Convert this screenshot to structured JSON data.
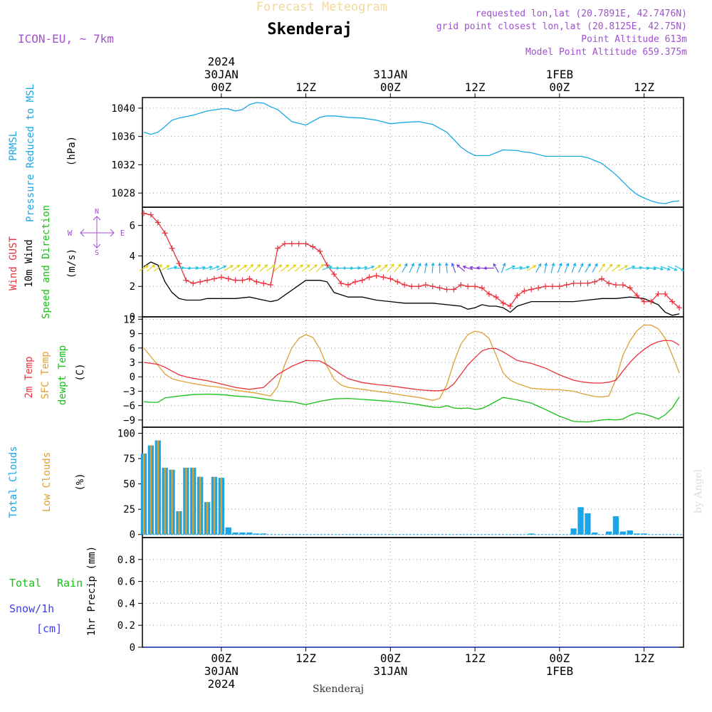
{
  "header": {
    "title_top": "Forecast Meteogram",
    "location": "Skenderaj",
    "model": "ICON-EU, ~ 7km",
    "requested": "requested lon,lat (20.7891E, 42.7476N)",
    "gridpoint": "grid point closest lon,lat (20.8125E, 42.75N)",
    "point_alt": "Point Altitude 613m",
    "model_alt": "Model Point Altitude 659.375m",
    "footer_location": "Skenderaj",
    "credit": "by Angel"
  },
  "colors": {
    "pressure": "#1aa6e6",
    "gust": "#e8323c",
    "wind": "#000000",
    "temp2m": "#e8323c",
    "sfc": "#dea033",
    "dewpt": "#18c018",
    "total_clouds": "#1aa6e6",
    "low_clouds": "#dea033",
    "rain": "#18c018",
    "snow": "#3c3cf0",
    "purple": "#a050d0",
    "grid": "#999999"
  },
  "time_axis": {
    "top_ticks": [
      {
        "t": 0,
        "label": "00Z",
        "date": "30JAN",
        "year": "2024"
      },
      {
        "t": 12,
        "label": "12Z"
      },
      {
        "t": 24,
        "label": "00Z",
        "date": "31JAN"
      },
      {
        "t": 36,
        "label": "12Z"
      },
      {
        "t": 48,
        "label": "00Z",
        "date": "1FEB"
      },
      {
        "t": 60,
        "label": "12Z"
      }
    ],
    "bottom_ticks": [
      {
        "t": 0,
        "label": "00Z",
        "date": "30JAN",
        "year": "2024"
      },
      {
        "t": 12,
        "label": "12Z"
      },
      {
        "t": 24,
        "label": "00Z",
        "date": "31JAN"
      },
      {
        "t": 36,
        "label": "12Z"
      },
      {
        "t": 48,
        "label": "00Z",
        "date": "1FEB"
      },
      {
        "t": 60,
        "label": "12Z"
      }
    ],
    "range": [
      -11.2,
      65.6
    ]
  },
  "panels": {
    "pressure": {
      "label1": "PRMSL",
      "label2": "Pressure Reduced to MSL",
      "unit": "(hPa)",
      "ylim": [
        1026,
        1041.5
      ],
      "ticks": [
        1028,
        1032,
        1036,
        1040
      ]
    },
    "wind": {
      "label_gust": "Wind GUST",
      "label_wind": "10m Wind",
      "label_dir": "Speed and Direction",
      "unit": "(m/s)",
      "ylim": [
        0,
        7.2
      ],
      "ticks": [
        0,
        2,
        4,
        6
      ],
      "compass": {
        "n": "N",
        "s": "S",
        "w": "W",
        "e": "E"
      }
    },
    "temp": {
      "label_2m": "2m Temp",
      "label_sfc": "SFC Temp",
      "label_dew": "dewpt Temp",
      "unit": "(C)",
      "ylim": [
        -10.5,
        12.5
      ],
      "ticks": [
        -9,
        -6,
        -3,
        0,
        3,
        6,
        9,
        12
      ]
    },
    "clouds": {
      "label_total": "Total Clouds",
      "label_low": "Low Clouds",
      "unit": "(%)",
      "ylim": [
        -3,
        106
      ],
      "ticks": [
        0,
        25,
        50,
        75,
        100
      ]
    },
    "precip": {
      "label_total": "Total",
      "label_rain": "Rain",
      "label_snow": "Snow/1h",
      "label_snow_unit": "[cm]",
      "unit": "1hr Precip (mm)",
      "ylim": [
        0,
        1.0
      ],
      "ticks": [
        0,
        0.2,
        0.4,
        0.6,
        0.8
      ]
    }
  },
  "chart_data": {
    "type": "line",
    "pressure": {
      "t": [
        -11,
        -10,
        -9,
        -8,
        -7,
        -6,
        -4,
        -2,
        0,
        1,
        2,
        3,
        4,
        5,
        6,
        7,
        8,
        10,
        12,
        14,
        15,
        16,
        18,
        20,
        22,
        24,
        26,
        28,
        30,
        32,
        34,
        35,
        36,
        37,
        38,
        39,
        40,
        42,
        43,
        44,
        46,
        48,
        50,
        51,
        52,
        54,
        55,
        56,
        57,
        58,
        59,
        60,
        61,
        62,
        63,
        64,
        65
      ],
      "values": [
        1036.6,
        1036.3,
        1036.6,
        1037.4,
        1038.3,
        1038.6,
        1039.0,
        1039.6,
        1039.9,
        1039.9,
        1039.6,
        1039.8,
        1040.5,
        1040.8,
        1040.7,
        1040.2,
        1039.8,
        1038.1,
        1037.6,
        1038.7,
        1038.9,
        1038.9,
        1038.7,
        1038.6,
        1038.3,
        1037.8,
        1038.0,
        1038.1,
        1037.7,
        1036.6,
        1034.5,
        1033.8,
        1033.3,
        1033.3,
        1033.3,
        1033.7,
        1034.1,
        1034.0,
        1033.8,
        1033.7,
        1033.2,
        1033.2,
        1033.2,
        1033.2,
        1033.0,
        1032.2,
        1031.4,
        1030.6,
        1029.6,
        1028.6,
        1027.8,
        1027.3,
        1026.9,
        1026.6,
        1026.5,
        1026.8,
        1026.9
      ]
    },
    "wind_gust": {
      "t": [
        -11,
        -10,
        -9,
        -8,
        -7,
        -6,
        -5,
        -4,
        -3,
        -2,
        -1,
        0,
        1,
        2,
        3,
        4,
        5,
        6,
        7,
        8,
        9,
        10,
        11,
        12,
        13,
        14,
        15,
        16,
        17,
        18,
        19,
        20,
        21,
        22,
        23,
        24,
        25,
        26,
        27,
        28,
        29,
        30,
        31,
        32,
        33,
        34,
        35,
        36,
        37,
        38,
        39,
        40,
        41,
        42,
        43,
        44,
        45,
        46,
        47,
        48,
        49,
        50,
        51,
        52,
        53,
        54,
        55,
        56,
        57,
        58,
        59,
        60,
        61,
        62,
        63,
        64,
        65
      ],
      "values": [
        6.8,
        6.7,
        6.2,
        5.5,
        4.5,
        3.5,
        2.4,
        2.2,
        2.3,
        2.4,
        2.5,
        2.6,
        2.5,
        2.4,
        2.4,
        2.5,
        2.3,
        2.2,
        2.1,
        4.5,
        4.8,
        4.8,
        4.8,
        4.8,
        4.6,
        4.3,
        3.4,
        2.8,
        2.2,
        2.1,
        2.3,
        2.4,
        2.6,
        2.7,
        2.6,
        2.5,
        2.3,
        2.1,
        2.0,
        2.0,
        2.1,
        2.0,
        1.9,
        1.8,
        1.8,
        2.1,
        2.0,
        2.0,
        1.9,
        1.5,
        1.3,
        0.9,
        0.7,
        1.4,
        1.7,
        1.8,
        1.9,
        2.0,
        2.0,
        2.0,
        2.1,
        2.2,
        2.2,
        2.2,
        2.3,
        2.5,
        2.2,
        2.1,
        2.1,
        1.9,
        1.4,
        1.0,
        1.0,
        1.5,
        1.5,
        1.0,
        0.6
      ]
    },
    "wind_speed": {
      "t": [
        -11,
        -10,
        -9,
        -8,
        -7,
        -6,
        -5,
        -4,
        -3,
        -2,
        0,
        2,
        4,
        6,
        7,
        8,
        12,
        14,
        15,
        16,
        18,
        20,
        22,
        24,
        26,
        28,
        30,
        32,
        34,
        35,
        36,
        37,
        38,
        39,
        40,
        41,
        42,
        44,
        46,
        48,
        50,
        52,
        54,
        56,
        58,
        60,
        61,
        62,
        63,
        64,
        65
      ],
      "values": [
        3.3,
        3.6,
        3.4,
        2.3,
        1.6,
        1.2,
        1.1,
        1.1,
        1.1,
        1.2,
        1.2,
        1.2,
        1.3,
        1.1,
        1.0,
        1.1,
        2.4,
        2.4,
        2.3,
        1.6,
        1.3,
        1.3,
        1.1,
        1.0,
        0.9,
        0.9,
        0.9,
        0.8,
        0.7,
        0.5,
        0.6,
        0.8,
        0.7,
        0.7,
        0.6,
        0.3,
        0.7,
        1.0,
        1.0,
        1.0,
        1.0,
        1.1,
        1.2,
        1.2,
        1.3,
        1.2,
        1.0,
        0.8,
        0.3,
        0.1,
        0.2
      ]
    },
    "wind_arrows": {
      "t": [
        -11,
        -10,
        -9,
        -8,
        -7,
        -6,
        -5,
        -4,
        -3,
        -2,
        -1,
        0,
        1,
        2,
        3,
        4,
        5,
        6,
        7,
        8,
        9,
        10,
        11,
        12,
        13,
        14,
        15,
        16,
        17,
        18,
        19,
        20,
        21,
        22,
        23,
        24,
        25,
        26,
        27,
        28,
        29,
        30,
        31,
        32,
        33,
        34,
        35,
        36,
        37,
        38,
        39,
        40,
        41,
        42,
        43,
        44,
        45,
        46,
        47,
        48,
        49,
        50,
        51,
        52,
        53,
        54,
        55,
        56,
        57,
        58,
        59,
        60,
        61,
        62,
        63,
        64,
        65
      ],
      "dir": [
        240,
        230,
        230,
        240,
        255,
        265,
        270,
        265,
        260,
        255,
        250,
        245,
        240,
        235,
        235,
        225,
        225,
        230,
        235,
        230,
        230,
        230,
        230,
        230,
        230,
        225,
        250,
        270,
        270,
        270,
        265,
        260,
        250,
        240,
        230,
        220,
        220,
        210,
        205,
        200,
        190,
        185,
        180,
        175,
        160,
        130,
        110,
        100,
        95,
        90,
        150,
        200,
        245,
        260,
        255,
        240,
        210,
        190,
        195,
        200,
        200,
        200,
        205,
        210,
        210,
        215,
        220,
        230,
        240,
        250,
        265,
        275,
        280,
        285,
        290,
        295,
        300
      ],
      "speed": [
        3.3,
        3.6,
        3.4,
        2.3,
        1.6,
        1.2,
        1.1,
        1.1,
        1.1,
        1.2,
        1.2,
        1.2,
        1.2,
        1.2,
        1.3,
        1.3,
        1.2,
        1.1,
        1.0,
        1.1,
        1.4,
        1.8,
        2.1,
        2.4,
        2.4,
        2.4,
        2.3,
        1.6,
        1.4,
        1.3,
        1.3,
        1.3,
        1.2,
        1.1,
        1.0,
        1.0,
        0.9,
        0.9,
        0.9,
        0.9,
        0.9,
        0.9,
        0.85,
        0.8,
        0.75,
        0.7,
        0.5,
        0.6,
        0.8,
        0.7,
        0.7,
        0.6,
        0.3,
        0.7,
        0.8,
        1.0,
        1.0,
        1.0,
        1.0,
        1.0,
        1.0,
        1.0,
        1.1,
        1.1,
        1.2,
        1.2,
        1.2,
        1.2,
        1.3,
        1.3,
        1.2,
        1.2,
        1.0,
        0.8,
        0.3,
        0.1,
        0.2
      ]
    },
    "temp_2m": {
      "t": [
        -11,
        -9,
        -8,
        -7,
        -6,
        -5,
        -4,
        -2,
        0,
        2,
        4,
        6,
        8,
        10,
        12,
        14,
        15,
        16,
        17,
        18,
        20,
        22,
        24,
        26,
        28,
        30,
        31,
        32,
        33,
        34,
        35,
        36,
        37,
        38,
        39,
        40,
        42,
        44,
        46,
        48,
        50,
        51,
        52,
        53,
        54,
        55,
        56,
        57,
        58,
        59,
        60,
        61,
        62,
        63,
        64,
        65
      ],
      "values": [
        3.0,
        2.6,
        2.0,
        1.2,
        0.4,
        0.0,
        -0.3,
        -0.8,
        -1.5,
        -2.2,
        -2.6,
        -2.2,
        0.5,
        2.2,
        3.4,
        3.3,
        2.5,
        1.5,
        0.5,
        -0.4,
        -1.2,
        -1.6,
        -1.9,
        -2.3,
        -2.7,
        -2.9,
        -2.9,
        -2.6,
        -1.5,
        0.5,
        2.5,
        4.0,
        5.4,
        5.9,
        5.9,
        5.2,
        3.4,
        2.8,
        1.8,
        0.4,
        -0.7,
        -1.0,
        -1.2,
        -1.3,
        -1.3,
        -1.1,
        -0.7,
        1.2,
        3.0,
        4.5,
        5.7,
        6.7,
        7.3,
        7.6,
        7.5,
        6.6
      ]
    },
    "temp_sfc": {
      "t": [
        -11,
        -10,
        -9,
        -8,
        -7,
        -6,
        -4,
        -2,
        0,
        2,
        4,
        5,
        6,
        7,
        8,
        9,
        10,
        11,
        12,
        13,
        14,
        15,
        16,
        17,
        18,
        20,
        22,
        24,
        26,
        28,
        30,
        31,
        32,
        33,
        34,
        35,
        36,
        37,
        38,
        39,
        40,
        41,
        42,
        44,
        46,
        48,
        50,
        51,
        52,
        53,
        54,
        55,
        56,
        57,
        58,
        59,
        60,
        61,
        62,
        63,
        64,
        65
      ],
      "values": [
        6.0,
        4.2,
        2.4,
        0.6,
        -0.4,
        -0.8,
        -1.4,
        -1.9,
        -2.2,
        -2.8,
        -3.2,
        -3.4,
        -3.7,
        -4.0,
        -2.0,
        2.5,
        6.0,
        8.0,
        8.8,
        8.2,
        5.8,
        2.2,
        -0.5,
        -1.7,
        -2.2,
        -2.6,
        -3.0,
        -3.4,
        -3.9,
        -4.3,
        -4.9,
        -4.5,
        -1.7,
        3.0,
        6.8,
        8.8,
        9.5,
        9.2,
        8.0,
        4.5,
        0.8,
        -0.7,
        -1.4,
        -2.4,
        -2.6,
        -2.7,
        -3.0,
        -3.4,
        -3.8,
        -4.1,
        -4.2,
        -4.0,
        -0.5,
        4.5,
        7.5,
        9.6,
        10.8,
        10.8,
        10.0,
        8.0,
        4.5,
        0.8
      ]
    },
    "temp_dew": {
      "t": [
        -11,
        -10,
        -9,
        -8,
        -7,
        -6,
        -4,
        -2,
        0,
        2,
        4,
        6,
        8,
        10,
        12,
        14,
        16,
        18,
        20,
        22,
        24,
        26,
        28,
        30,
        31,
        32,
        33,
        34,
        35,
        36,
        37,
        38,
        40,
        42,
        44,
        46,
        48,
        50,
        52,
        54,
        55,
        56,
        57,
        58,
        59,
        60,
        61,
        62,
        63,
        64,
        65
      ],
      "values": [
        -5.2,
        -5.3,
        -5.3,
        -4.4,
        -4.2,
        -4.0,
        -3.7,
        -3.6,
        -3.7,
        -4.0,
        -4.2,
        -4.6,
        -5.0,
        -5.2,
        -5.8,
        -5.1,
        -4.6,
        -4.5,
        -4.7,
        -4.9,
        -5.1,
        -5.4,
        -5.8,
        -6.3,
        -6.4,
        -6.0,
        -6.5,
        -6.6,
        -6.5,
        -6.8,
        -6.6,
        -5.9,
        -4.3,
        -4.8,
        -5.5,
        -6.8,
        -8.2,
        -9.3,
        -9.4,
        -9.0,
        -8.9,
        -9.0,
        -8.8,
        -8.0,
        -7.5,
        -7.8,
        -8.2,
        -8.8,
        -7.9,
        -6.5,
        -4.2
      ]
    },
    "clouds_total": {
      "t": [
        -11,
        -10,
        -9,
        -8,
        -7,
        -6,
        -5,
        -4,
        -3,
        -2,
        -1,
        0,
        1,
        2,
        3,
        4,
        5,
        6,
        7,
        8,
        9,
        10,
        11,
        12,
        13,
        14,
        15,
        16,
        17,
        18,
        19,
        20,
        21,
        22,
        23,
        24,
        25,
        26,
        27,
        28,
        29,
        30,
        31,
        32,
        33,
        34,
        35,
        36,
        37,
        38,
        39,
        40,
        41,
        42,
        43,
        44,
        45,
        46,
        47,
        48,
        49,
        50,
        51,
        52,
        53,
        54,
        55,
        56,
        57,
        58,
        59,
        60,
        61,
        62,
        63,
        64,
        65
      ],
      "values": [
        80,
        88,
        93,
        66,
        64,
        23,
        66,
        66,
        57,
        32,
        57,
        56,
        7,
        2,
        2,
        2,
        1,
        1,
        0,
        0,
        0,
        0,
        0,
        0,
        0,
        0,
        0,
        0,
        0,
        0,
        0,
        0,
        0,
        0,
        0,
        0,
        0,
        0,
        0,
        0,
        0,
        0,
        0,
        0,
        0,
        0,
        0,
        0,
        0,
        0,
        0,
        0,
        0,
        0,
        0,
        1,
        0,
        0,
        0,
        0,
        0,
        6,
        27,
        21,
        2,
        0,
        3,
        18,
        3,
        4,
        1,
        1,
        0,
        0,
        0,
        0,
        0
      ]
    },
    "clouds_low": {
      "t": [
        -11,
        -10,
        -9,
        -8,
        -7,
        -6,
        -5,
        -4,
        -3,
        -2,
        -1,
        0,
        1,
        2,
        3,
        4,
        5,
        6
      ],
      "values": [
        80,
        88,
        93,
        66,
        64,
        23,
        66,
        66,
        57,
        32,
        57,
        56,
        0,
        0,
        0,
        0,
        0,
        0
      ]
    },
    "precip_rain": {
      "t": [
        -11,
        65
      ],
      "values": [
        0,
        0
      ]
    },
    "precip_snow": {
      "t": [
        -11,
        65
      ],
      "values": [
        0,
        0
      ]
    }
  }
}
